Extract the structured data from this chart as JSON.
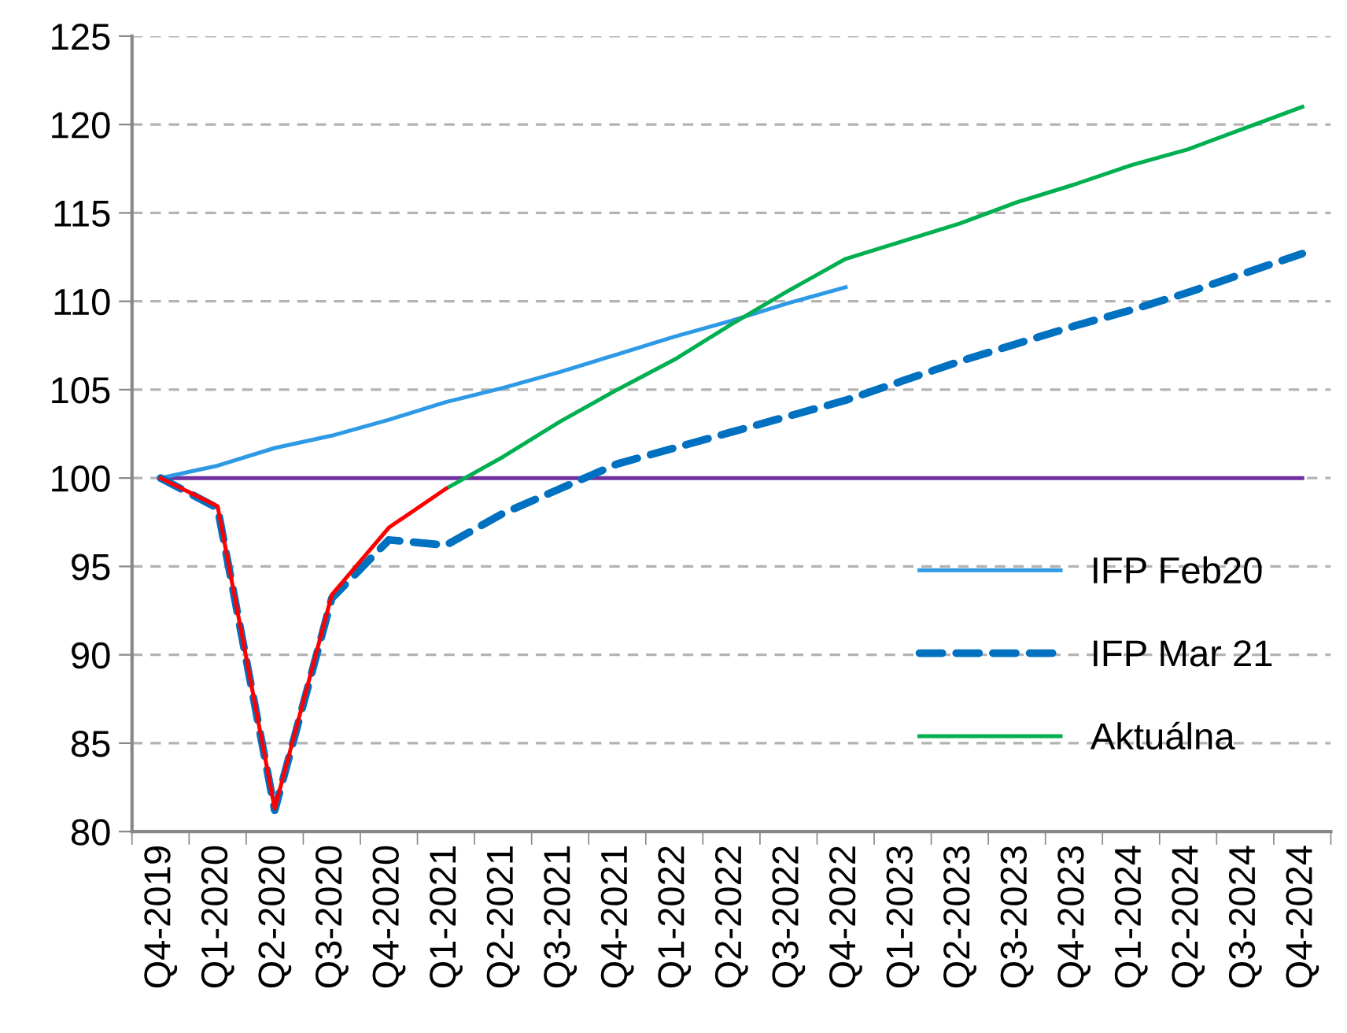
{
  "chart_data": {
    "type": "line",
    "categories": [
      "Q4-2019",
      "Q1-2020",
      "Q2-2020",
      "Q3-2020",
      "Q4-2020",
      "Q1-2021",
      "Q2-2021",
      "Q3-2021",
      "Q4-2021",
      "Q1-2022",
      "Q2-2022",
      "Q3-2022",
      "Q4-2022",
      "Q1-2023",
      "Q2-2023",
      "Q3-2023",
      "Q4-2023",
      "Q1-2024",
      "Q2-2024",
      "Q3-2024",
      "Q4-2024"
    ],
    "series": [
      {
        "color": "#7030a0",
        "line_style": "solid",
        "values": [
          100,
          100,
          100,
          100,
          100,
          100,
          100,
          100,
          100,
          100,
          100,
          100,
          100,
          100,
          100,
          100,
          100,
          100,
          100,
          100,
          100
        ]
      },
      {
        "name": "IFP Feb20",
        "color": "#2e9ae6",
        "line_style": "solid",
        "values": [
          100,
          100.7,
          101.7,
          102.4,
          103.3,
          104.3,
          105.1,
          106.0,
          107.0,
          108.0,
          108.9,
          109.9,
          110.8,
          null,
          null,
          null,
          null,
          null,
          null,
          null,
          null
        ]
      },
      {
        "name": "IFP Mar 21",
        "color": "#0070c0",
        "line_style": "dashed",
        "values": [
          100,
          98.3,
          81.2,
          93.2,
          96.5,
          96.2,
          98.0,
          99.4,
          100.8,
          101.7,
          102.6,
          103.5,
          104.4,
          105.5,
          106.6,
          107.6,
          108.6,
          109.5,
          110.5,
          111.6,
          112.7
        ]
      },
      {
        "name": "Aktuálna",
        "color": "#00b050",
        "line_style": "solid",
        "values": [
          null,
          null,
          null,
          null,
          null,
          99.4,
          101.2,
          103.2,
          105.0,
          106.7,
          108.7,
          110.6,
          112.4,
          113.4,
          114.4,
          115.6,
          116.6,
          117.7,
          118.6,
          119.8,
          121.0
        ]
      },
      {
        "color": "#ff0000",
        "line_style": "solid",
        "values": [
          100,
          98.4,
          81.3,
          93.4,
          97.2,
          99.4,
          null,
          null,
          null,
          null,
          null,
          null,
          null,
          null,
          null,
          null,
          null,
          null,
          null,
          null,
          null
        ]
      }
    ],
    "ylim": [
      80,
      125
    ],
    "yticks": [
      80,
      85,
      90,
      95,
      100,
      105,
      110,
      115,
      120,
      125
    ],
    "grid": "y",
    "legend": "right"
  }
}
